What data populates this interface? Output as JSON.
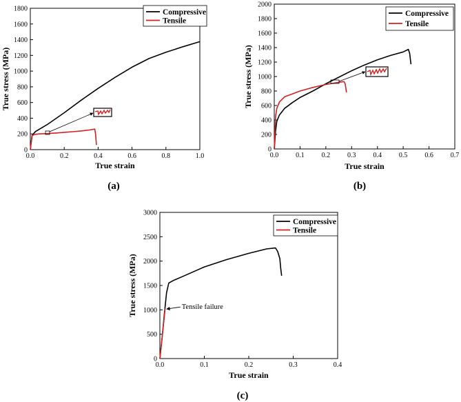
{
  "figure": {
    "panel_captions": [
      "(a)",
      "(b)",
      "(c)"
    ]
  },
  "colors": {
    "compressive": "#000000",
    "tensile": "#d42020"
  },
  "chart_data": [
    {
      "type": "line",
      "caption": "(a)",
      "xlabel": "True strain",
      "ylabel": "True stress (MPa)",
      "xlim": [
        0,
        1.0
      ],
      "ylim": [
        0,
        1800
      ],
      "xticks": [
        0.0,
        0.2,
        0.4,
        0.6,
        0.8,
        1.0
      ],
      "xtick_labels": [
        "0.0",
        "0.2",
        "0.4",
        "0.6",
        "0.8",
        "1.0"
      ],
      "yticks": [
        0,
        200,
        400,
        600,
        800,
        1000,
        1200,
        1400,
        1600,
        1800
      ],
      "ytick_labels": [
        "0",
        "200",
        "400",
        "600",
        "800",
        "1000",
        "1200",
        "1400",
        "1600",
        "1800"
      ],
      "legend": {
        "position": "top-right",
        "entries": [
          "Compressive",
          "Tensile"
        ]
      },
      "inset_zoom": true,
      "series": [
        {
          "name": "Compressive",
          "color": "#000000",
          "x": [
            0,
            0.01,
            0.03,
            0.1,
            0.2,
            0.3,
            0.4,
            0.5,
            0.6,
            0.7,
            0.8,
            0.9,
            1.0
          ],
          "y": [
            0,
            180,
            230,
            320,
            470,
            630,
            780,
            920,
            1050,
            1160,
            1240,
            1310,
            1375
          ]
        },
        {
          "name": "Tensile",
          "color": "#d42020",
          "x": [
            0,
            0.01,
            0.03,
            0.05,
            0.1,
            0.15,
            0.2,
            0.25,
            0.3,
            0.35,
            0.38,
            0.385,
            0.39
          ],
          "y": [
            0,
            180,
            195,
            200,
            205,
            212,
            220,
            228,
            238,
            250,
            262,
            200,
            60
          ]
        }
      ]
    },
    {
      "type": "line",
      "caption": "(b)",
      "xlabel": "True strain",
      "ylabel": "True stress (MPa)",
      "xlim": [
        0,
        0.7
      ],
      "ylim": [
        0,
        2000
      ],
      "xticks": [
        0.0,
        0.1,
        0.2,
        0.3,
        0.4,
        0.5,
        0.6,
        0.7
      ],
      "xtick_labels": [
        "0.0",
        "0.1",
        "0.2",
        "0.3",
        "0.4",
        "0.5",
        "0.6",
        "0.7"
      ],
      "yticks": [
        0,
        200,
        400,
        600,
        800,
        1000,
        1200,
        1400,
        1600,
        1800,
        2000
      ],
      "ytick_labels": [
        "0",
        "200",
        "400",
        "600",
        "800",
        "1000",
        "1200",
        "1400",
        "1600",
        "1800",
        "2000"
      ],
      "legend": {
        "position": "top-right",
        "entries": [
          "Compressive",
          "Tensile"
        ]
      },
      "inset_zoom": true,
      "series": [
        {
          "name": "Compressive",
          "color": "#000000",
          "x": [
            0,
            0.005,
            0.01,
            0.02,
            0.04,
            0.07,
            0.1,
            0.15,
            0.2,
            0.25,
            0.3,
            0.35,
            0.4,
            0.45,
            0.5,
            0.52,
            0.525,
            0.53
          ],
          "y": [
            0,
            250,
            380,
            470,
            560,
            640,
            710,
            800,
            900,
            990,
            1080,
            1160,
            1230,
            1290,
            1340,
            1375,
            1320,
            1170
          ]
        },
        {
          "name": "Tensile",
          "color": "#d42020",
          "x": [
            0,
            0.005,
            0.01,
            0.02,
            0.04,
            0.07,
            0.1,
            0.15,
            0.2,
            0.25,
            0.27,
            0.275,
            0.28
          ],
          "y": [
            0,
            450,
            560,
            650,
            720,
            760,
            800,
            850,
            890,
            920,
            930,
            900,
            780
          ]
        }
      ]
    },
    {
      "type": "line",
      "caption": "(c)",
      "xlabel": "True strain",
      "ylabel": "True stress (MPa)",
      "xlim": [
        0,
        0.4
      ],
      "ylim": [
        0,
        3000
      ],
      "xticks": [
        0.0,
        0.1,
        0.2,
        0.3,
        0.4
      ],
      "xtick_labels": [
        "0.0",
        "0.1",
        "0.2",
        "0.3",
        "0.4"
      ],
      "yticks": [
        0,
        500,
        1000,
        1500,
        2000,
        2500,
        3000
      ],
      "ytick_labels": [
        "0",
        "500",
        "1000",
        "1500",
        "2000",
        "2500",
        "3000"
      ],
      "legend": {
        "position": "top-right",
        "entries": [
          "Compressive",
          "Tensile"
        ]
      },
      "annotations": [
        {
          "text": "Tensile failure",
          "x": 0.012,
          "y": 1030
        }
      ],
      "series": [
        {
          "name": "Compressive",
          "color": "#000000",
          "x": [
            0,
            0.005,
            0.01,
            0.015,
            0.02,
            0.03,
            0.05,
            0.08,
            0.1,
            0.15,
            0.2,
            0.24,
            0.26,
            0.265,
            0.27,
            0.272,
            0.274
          ],
          "y": [
            0,
            420,
            900,
            1350,
            1550,
            1600,
            1680,
            1800,
            1880,
            2030,
            2160,
            2250,
            2270,
            2200,
            2050,
            1850,
            1700
          ]
        },
        {
          "name": "Tensile",
          "color": "#d42020",
          "x": [
            0,
            0.004,
            0.008,
            0.012
          ],
          "y": [
            0,
            350,
            700,
            1030
          ]
        }
      ]
    }
  ]
}
